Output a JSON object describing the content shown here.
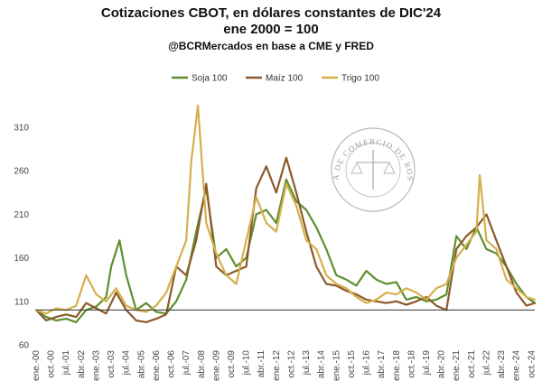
{
  "header": {
    "title": "Cotizaciones CBOT, en dólares constantes de DIC'24",
    "subtitle": "ene 2000 = 100",
    "source": "@BCRMercados en base a CME y FRED"
  },
  "watermark": {
    "text": "BOLSA DE COMERCIO DE ROSARIO"
  },
  "chart_data": {
    "type": "line",
    "title": "Cotizaciones CBOT, en dólares constantes de DIC'24",
    "subtitle": "ene 2000 = 100",
    "xlabel": "",
    "ylabel": "",
    "ylim": [
      60,
      340
    ],
    "yticks": [
      60,
      110,
      160,
      210,
      260,
      310
    ],
    "baseline": 100,
    "grid": false,
    "legend": "top-center",
    "x_start": "ene.-00",
    "x_end": "dic.-24",
    "x_ticks": [
      "ene.-00",
      "oct.-00",
      "jul.-01",
      "abr.-02",
      "ene.-03",
      "oct.-03",
      "jul.-04",
      "abr.-05",
      "ene.-06",
      "oct.-06",
      "jul.-07",
      "abr.-08",
      "ene.-09",
      "oct.-09",
      "jul.-10",
      "abr.-11",
      "ene.-12",
      "oct.-12",
      "jul.-13",
      "abr.-14",
      "ene.-15",
      "oct.-15",
      "jul.-16",
      "abr.-17",
      "ene.-18",
      "oct.-18",
      "jul.-19",
      "abr.-20",
      "ene.-21",
      "oct.-21",
      "jul.-22",
      "abr.-23",
      "ene.-24",
      "oct.-24"
    ],
    "series": [
      {
        "name": "Soja 100",
        "color": "#5e8f2c",
        "points": [
          [
            "ene.-00",
            100
          ],
          [
            "jul.-00",
            92
          ],
          [
            "ene.-01",
            88
          ],
          [
            "jul.-01",
            90
          ],
          [
            "ene.-02",
            86
          ],
          [
            "jul.-02",
            100
          ],
          [
            "ene.-03",
            104
          ],
          [
            "jul.-03",
            115
          ],
          [
            "oct.-03",
            150
          ],
          [
            "mar.-04",
            180
          ],
          [
            "jul.-04",
            140
          ],
          [
            "ene.-05",
            100
          ],
          [
            "jul.-05",
            108
          ],
          [
            "ene.-06",
            98
          ],
          [
            "jul.-06",
            96
          ],
          [
            "ene.-07",
            110
          ],
          [
            "jul.-07",
            135
          ],
          [
            "ene.-08",
            190
          ],
          [
            "jul.-08",
            240
          ],
          [
            "ene.-09",
            160
          ],
          [
            "jul.-09",
            170
          ],
          [
            "ene.-10",
            150
          ],
          [
            "jul.-10",
            160
          ],
          [
            "ene.-11",
            210
          ],
          [
            "jul.-11",
            215
          ],
          [
            "ene.-12",
            200
          ],
          [
            "jul.-12",
            250
          ],
          [
            "ene.-13",
            225
          ],
          [
            "jul.-13",
            215
          ],
          [
            "ene.-14",
            195
          ],
          [
            "jul.-14",
            170
          ],
          [
            "ene.-15",
            140
          ],
          [
            "jul.-15",
            135
          ],
          [
            "ene.-16",
            128
          ],
          [
            "jul.-16",
            145
          ],
          [
            "ene.-17",
            135
          ],
          [
            "jul.-17",
            130
          ],
          [
            "ene.-18",
            132
          ],
          [
            "jul.-18",
            112
          ],
          [
            "ene.-19",
            115
          ],
          [
            "jul.-19",
            110
          ],
          [
            "ene.-20",
            112
          ],
          [
            "jul.-20",
            118
          ],
          [
            "ene.-21",
            185
          ],
          [
            "jul.-21",
            170
          ],
          [
            "ene.-22",
            195
          ],
          [
            "jul.-22",
            170
          ],
          [
            "ene.-23",
            165
          ],
          [
            "jul.-23",
            150
          ],
          [
            "ene.-24",
            130
          ],
          [
            "jul.-24",
            115
          ],
          [
            "dic.-24",
            108
          ]
        ]
      },
      {
        "name": "Maíz 100",
        "color": "#8c5a2b",
        "points": [
          [
            "ene.-00",
            100
          ],
          [
            "jul.-00",
            88
          ],
          [
            "ene.-01",
            92
          ],
          [
            "jul.-01",
            95
          ],
          [
            "ene.-02",
            92
          ],
          [
            "jul.-02",
            108
          ],
          [
            "ene.-03",
            102
          ],
          [
            "jul.-03",
            96
          ],
          [
            "ene.-04",
            120
          ],
          [
            "jul.-04",
            100
          ],
          [
            "ene.-05",
            88
          ],
          [
            "jul.-05",
            86
          ],
          [
            "ene.-06",
            90
          ],
          [
            "jul.-06",
            95
          ],
          [
            "ene.-07",
            150
          ],
          [
            "jul.-07",
            140
          ],
          [
            "ene.-08",
            180
          ],
          [
            "jul.-08",
            245
          ],
          [
            "ene.-09",
            150
          ],
          [
            "jul.-09",
            140
          ],
          [
            "ene.-10",
            145
          ],
          [
            "jul.-10",
            150
          ],
          [
            "ene.-11",
            240
          ],
          [
            "jul.-11",
            265
          ],
          [
            "ene.-12",
            235
          ],
          [
            "jul.-12",
            275
          ],
          [
            "ene.-13",
            235
          ],
          [
            "jul.-13",
            190
          ],
          [
            "ene.-14",
            150
          ],
          [
            "jul.-14",
            130
          ],
          [
            "ene.-15",
            128
          ],
          [
            "jul.-15",
            122
          ],
          [
            "ene.-16",
            118
          ],
          [
            "jul.-16",
            112
          ],
          [
            "ene.-17",
            110
          ],
          [
            "jul.-17",
            108
          ],
          [
            "ene.-18",
            110
          ],
          [
            "jul.-18",
            106
          ],
          [
            "ene.-19",
            110
          ],
          [
            "jul.-19",
            115
          ],
          [
            "ene.-20",
            105
          ],
          [
            "jul.-20",
            100
          ],
          [
            "ene.-21",
            170
          ],
          [
            "jul.-21",
            185
          ],
          [
            "ene.-22",
            195
          ],
          [
            "jul.-22",
            210
          ],
          [
            "ene.-23",
            180
          ],
          [
            "jul.-23",
            150
          ],
          [
            "ene.-24",
            120
          ],
          [
            "jul.-24",
            105
          ],
          [
            "dic.-24",
            108
          ]
        ]
      },
      {
        "name": "Trigo 100",
        "color": "#d4b04c",
        "points": [
          [
            "ene.-00",
            100
          ],
          [
            "jul.-00",
            96
          ],
          [
            "ene.-01",
            102
          ],
          [
            "jul.-01",
            100
          ],
          [
            "ene.-02",
            105
          ],
          [
            "jul.-02",
            140
          ],
          [
            "ene.-03",
            118
          ],
          [
            "jul.-03",
            110
          ],
          [
            "ene.-04",
            125
          ],
          [
            "jul.-04",
            105
          ],
          [
            "ene.-05",
            100
          ],
          [
            "jul.-05",
            98
          ],
          [
            "ene.-06",
            105
          ],
          [
            "jul.-06",
            120
          ],
          [
            "ene.-07",
            150
          ],
          [
            "jul.-07",
            180
          ],
          [
            "oct.-07",
            270
          ],
          [
            "feb.-08",
            335
          ],
          [
            "jul.-08",
            200
          ],
          [
            "ene.-09",
            165
          ],
          [
            "jul.-09",
            140
          ],
          [
            "ene.-10",
            130
          ],
          [
            "jul.-10",
            180
          ],
          [
            "ene.-11",
            230
          ],
          [
            "jul.-11",
            200
          ],
          [
            "ene.-12",
            190
          ],
          [
            "jul.-12",
            245
          ],
          [
            "ene.-13",
            220
          ],
          [
            "jul.-13",
            180
          ],
          [
            "ene.-14",
            170
          ],
          [
            "jul.-14",
            140
          ],
          [
            "ene.-15",
            130
          ],
          [
            "jul.-15",
            125
          ],
          [
            "ene.-16",
            115
          ],
          [
            "jul.-16",
            108
          ],
          [
            "ene.-17",
            112
          ],
          [
            "jul.-17",
            120
          ],
          [
            "ene.-18",
            118
          ],
          [
            "jul.-18",
            125
          ],
          [
            "ene.-19",
            120
          ],
          [
            "jul.-19",
            112
          ],
          [
            "ene.-20",
            125
          ],
          [
            "jul.-20",
            130
          ],
          [
            "ene.-21",
            160
          ],
          [
            "jul.-21",
            175
          ],
          [
            "ene.-22",
            190
          ],
          [
            "mar.-22",
            255
          ],
          [
            "jul.-22",
            180
          ],
          [
            "ene.-23",
            170
          ],
          [
            "jul.-23",
            135
          ],
          [
            "ene.-24",
            125
          ],
          [
            "jul.-24",
            115
          ],
          [
            "dic.-24",
            112
          ]
        ]
      }
    ]
  }
}
